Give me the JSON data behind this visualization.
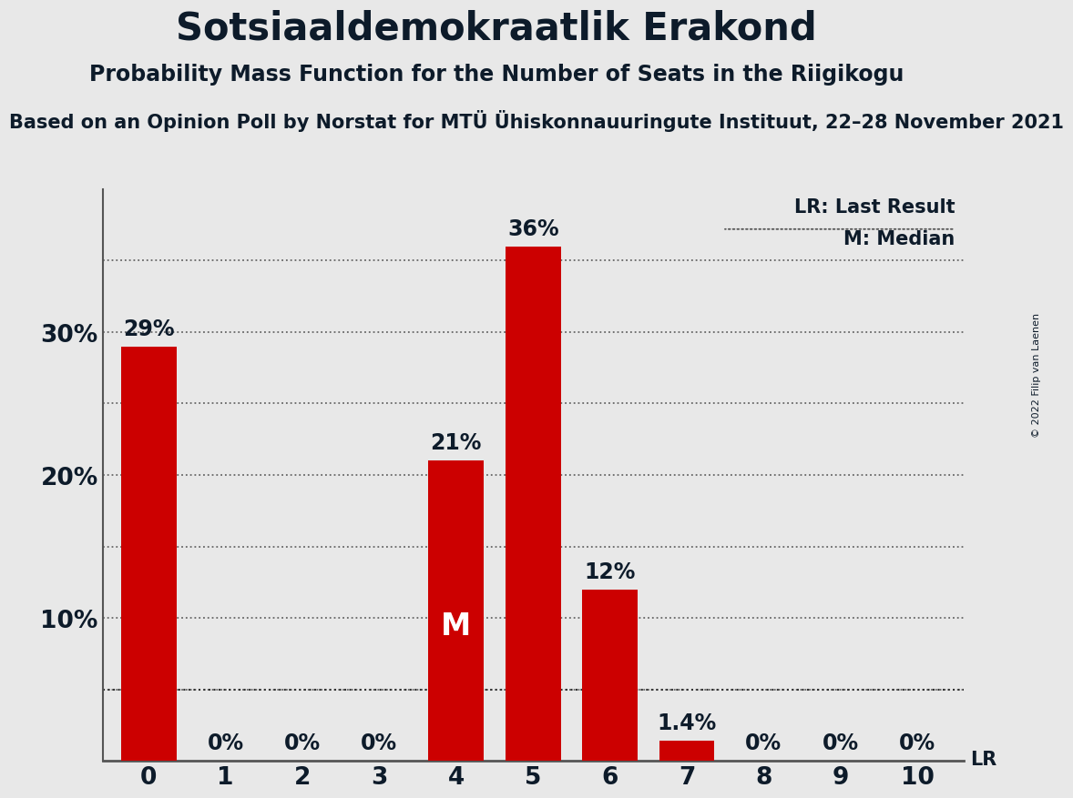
{
  "title": "Sotsiaaldemokraatlik Erakond",
  "subtitle": "Probability Mass Function for the Number of Seats in the Riigikogu",
  "sub_subtitle": "Based on an Opinion Poll by Norstat for MTÜ Ühiskonnauuringute Instituut, 22–28 November 2021",
  "copyright": "© 2022 Filip van Laenen",
  "categories": [
    0,
    1,
    2,
    3,
    4,
    5,
    6,
    7,
    8,
    9,
    10
  ],
  "values": [
    29,
    0,
    0,
    0,
    21,
    36,
    12,
    1.4,
    0,
    0,
    0
  ],
  "bar_color": "#CC0000",
  "background_color": "#E8E8E8",
  "ylim": [
    0,
    40
  ],
  "grid_levels": [
    5,
    10,
    15,
    20,
    25,
    30,
    35
  ],
  "lr_value": 5.0,
  "median_bar_index": 4,
  "median_label": "M",
  "lr_label": "LR",
  "legend_lr": "LR: Last Result",
  "legend_m": "M: Median",
  "title_fontsize": 30,
  "subtitle_fontsize": 17,
  "sub_subtitle_fontsize": 15,
  "bar_label_fontsize": 17,
  "tick_fontsize": 19,
  "legend_fontsize": 15,
  "median_fontsize": 24,
  "text_color": "#0D1B2A",
  "copyright_fontsize": 8
}
